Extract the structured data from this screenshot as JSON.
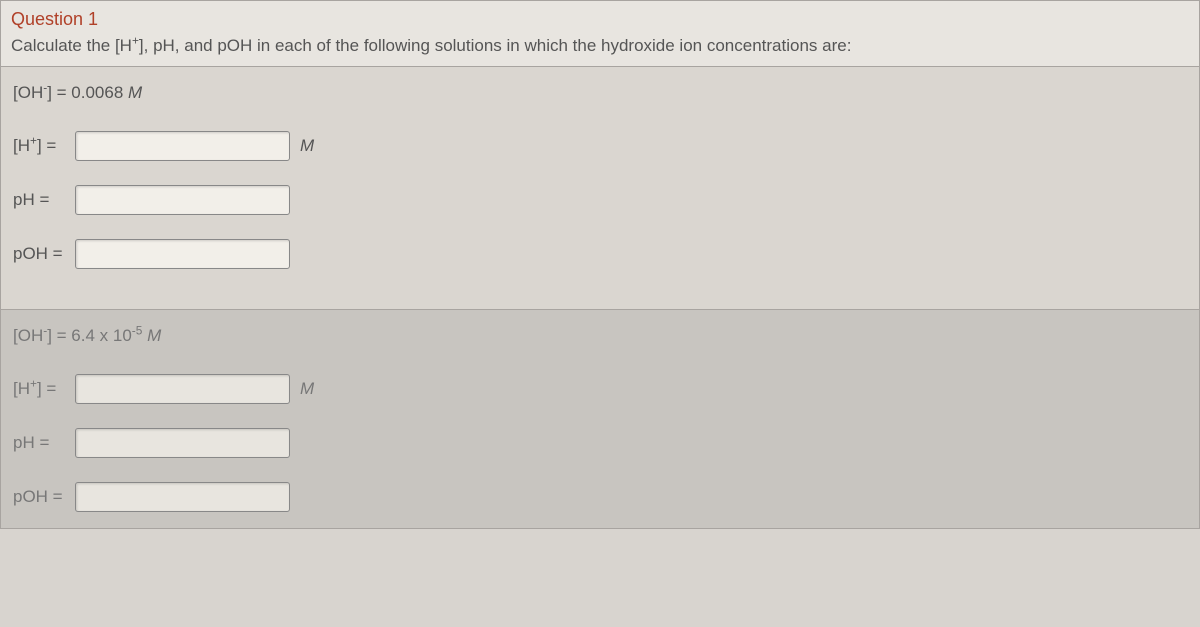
{
  "header": {
    "title": "Question 1",
    "prompt_prefix": "Calculate the [H",
    "prompt_sup": "+",
    "prompt_suffix": "], pH, and pOH in each of the following solutions in which the hydroxide ion concentrations are:"
  },
  "part1": {
    "given_prefix": "[OH",
    "given_sup": "-",
    "given_suffix": "] = 0.0068 ",
    "given_unit": "M",
    "rows": {
      "hplus": {
        "label_prefix": "[H",
        "label_sup": "+",
        "label_suffix": "] =",
        "value": "",
        "unit": "M"
      },
      "ph": {
        "label": "pH =",
        "value": ""
      },
      "poh": {
        "label": "pOH =",
        "value": ""
      }
    }
  },
  "part2": {
    "given_prefix": "[OH",
    "given_sup": "-",
    "given_suffix": "] = 6.4 x 10",
    "given_exp": "-5",
    "given_unit": " M",
    "rows": {
      "hplus": {
        "label_prefix": "[H",
        "label_sup": "+",
        "label_suffix": "] =",
        "value": "",
        "unit": "M"
      },
      "ph": {
        "label": "pH =",
        "value": ""
      },
      "poh": {
        "label": "pOH =",
        "value": ""
      }
    }
  },
  "colors": {
    "title": "#b04028",
    "text": "#555",
    "bg_top": "#dad6d0",
    "bg_bottom": "#c8c5c0",
    "border": "#a8a4a0"
  }
}
